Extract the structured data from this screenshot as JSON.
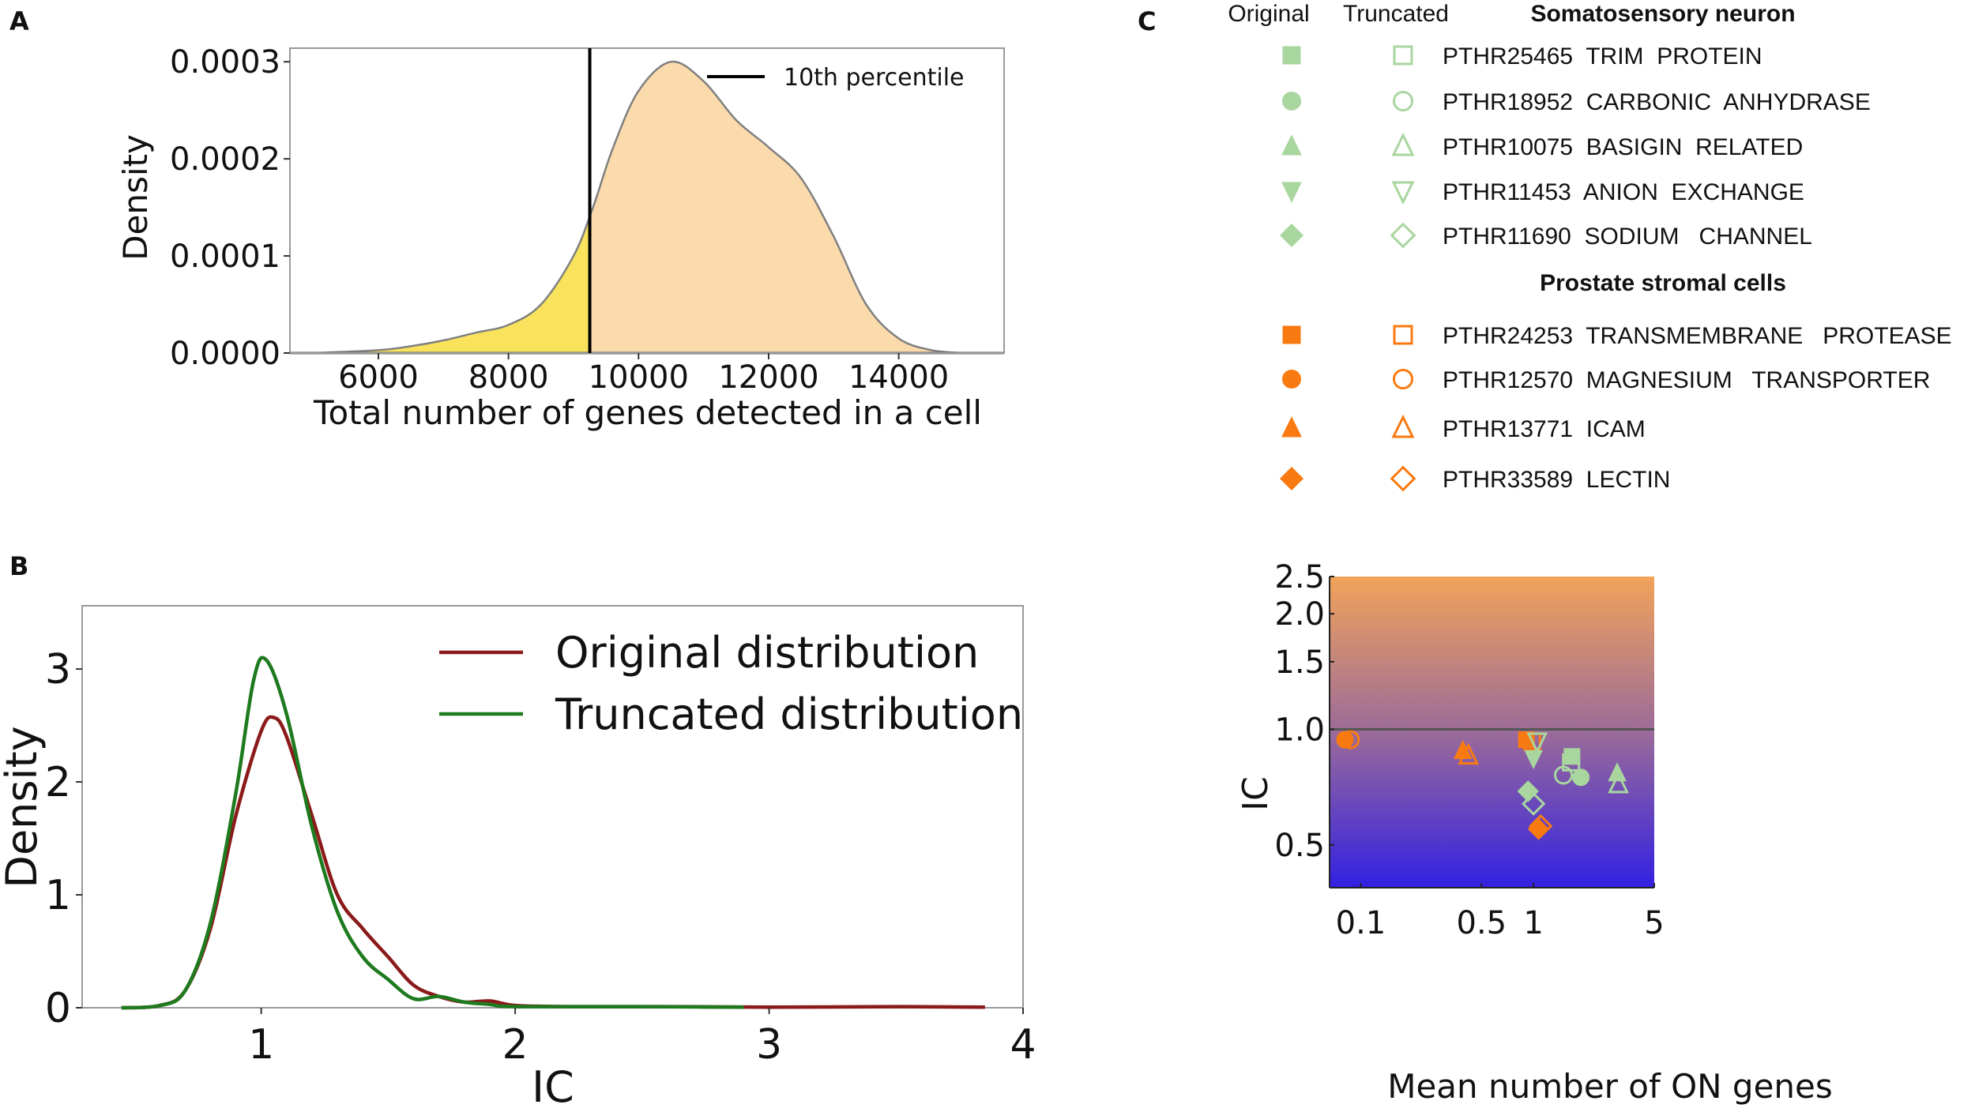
{
  "panel_labels": {
    "a": "A",
    "b": "B",
    "c": "C"
  },
  "chart_data": [
    {
      "id": "A",
      "type": "area",
      "xlabel": "Total number of genes detected in a cell",
      "ylabel": "Density",
      "xlim": [
        4640,
        15620
      ],
      "ylim": [
        0,
        0.000314
      ],
      "x_ticks": [
        6000,
        8000,
        10000,
        12000,
        14000
      ],
      "x_tick_labels": [
        "6000",
        "8000",
        "10000",
        "12000",
        "14000"
      ],
      "y_ticks": [
        0,
        0.0001,
        0.0002,
        0.0003
      ],
      "y_tick_labels": [
        "0.0000",
        "0.0001",
        "0.0002",
        "0.0003"
      ],
      "legend": {
        "label": "10th percentile",
        "placement": "top-right"
      },
      "percentile_10": 9250,
      "colors": {
        "below": "#f9e35c",
        "above": "#fbdbab",
        "outline": "#808080",
        "line": "#000000"
      },
      "x": [
        5000,
        6000,
        6500,
        7000,
        7500,
        8000,
        8500,
        9000,
        9300,
        9600,
        10000,
        10500,
        11000,
        11500,
        12000,
        12500,
        13000,
        13500,
        14000,
        14500,
        15000
      ],
      "y": [
        0,
        3e-06,
        7e-06,
        1.3e-05,
        2.1e-05,
        2.9e-05,
        5e-05,
        0.0001,
        0.00015,
        0.00021,
        0.00027,
        0.0003,
        0.00028,
        0.00024,
        0.000212,
        0.00018,
        0.00012,
        5e-05,
        1.5e-05,
        3e-06,
        0
      ]
    },
    {
      "id": "B",
      "type": "line",
      "xlabel": "IC",
      "ylabel": "Density",
      "xlim": [
        0.295,
        4.0
      ],
      "ylim": [
        0,
        3.56
      ],
      "x_ticks": [
        1,
        2,
        3,
        4
      ],
      "x_tick_labels": [
        "1",
        "2",
        "3",
        "4"
      ],
      "y_ticks": [
        0,
        1,
        2,
        3
      ],
      "y_tick_labels": [
        "0",
        "1",
        "2",
        "3"
      ],
      "legend_placement": "top-right",
      "series": [
        {
          "name": "Original distribution",
          "color": "#8b1a1a",
          "x": [
            0.45,
            0.6,
            0.7,
            0.8,
            0.9,
            1.0,
            1.05,
            1.1,
            1.2,
            1.3,
            1.4,
            1.5,
            1.6,
            1.7,
            1.8,
            1.9,
            2.0,
            2.2,
            2.6,
            3.0,
            3.5,
            3.85
          ],
          "y": [
            0,
            0.02,
            0.15,
            0.7,
            1.7,
            2.45,
            2.57,
            2.4,
            1.7,
            1.0,
            0.7,
            0.45,
            0.2,
            0.1,
            0.05,
            0.06,
            0.02,
            0.01,
            0.01,
            0.005,
            0.01,
            0.005
          ]
        },
        {
          "name": "Truncated distribution",
          "color": "#1e7a1e",
          "x": [
            0.45,
            0.6,
            0.7,
            0.8,
            0.9,
            0.97,
            1.02,
            1.1,
            1.2,
            1.3,
            1.4,
            1.5,
            1.6,
            1.7,
            1.8,
            1.9,
            2.0,
            2.5,
            2.9
          ],
          "y": [
            0,
            0.02,
            0.15,
            0.75,
            1.9,
            2.9,
            3.08,
            2.6,
            1.6,
            0.85,
            0.45,
            0.25,
            0.08,
            0.1,
            0.05,
            0.03,
            0.01,
            0.01,
            0.005
          ]
        }
      ]
    },
    {
      "id": "C",
      "type": "scatter",
      "xlabel": "Mean number of ON genes",
      "ylabel": "IC",
      "xscale": "log",
      "yscale": "log",
      "xlim": [
        0.066,
        5
      ],
      "ylim": [
        0.387,
        2.5
      ],
      "x_ticks": [
        0.1,
        0.5,
        1,
        5
      ],
      "x_tick_labels": [
        "0.1",
        "0.5",
        "1",
        "5"
      ],
      "y_ticks": [
        0.5,
        1.0,
        1.5,
        2.0,
        2.5
      ],
      "y_tick_labels": [
        "0.5",
        "1.0",
        "1.5",
        "2.0",
        "2.5"
      ],
      "reference_line": 1.0,
      "background_gradient": [
        "#f2a35a",
        "#9b6b99",
        "#3220e2"
      ],
      "legend": {
        "col_original": "Original",
        "col_truncated": "Truncated",
        "groups": [
          {
            "title": "Somatosensory neuron",
            "color": "#a9d69f",
            "items": [
              {
                "shape": "square",
                "label": "PTHR25465  TRIM  PROTEIN"
              },
              {
                "shape": "circle",
                "label": "PTHR18952  CARBONIC  ANHYDRASE"
              },
              {
                "shape": "triangle",
                "label": "PTHR10075  BASIGIN  RELATED"
              },
              {
                "shape": "down-triangle",
                "label": "PTHR11453  ANION  EXCHANGE"
              },
              {
                "shape": "diamond",
                "label": "PTHR11690  SODIUM   CHANNEL"
              }
            ]
          },
          {
            "title": "Prostate stromal cells",
            "color": "#fa7a12",
            "items": [
              {
                "shape": "square",
                "label": "PTHR24253  TRANSMEMBRANE   PROTEASE"
              },
              {
                "shape": "circle",
                "label": "PTHR12570  MAGNESIUM   TRANSPORTER"
              },
              {
                "shape": "triangle",
                "label": "PTHR13771  ICAM"
              },
              {
                "shape": "diamond",
                "label": "PTHR33589  LECTIN"
              }
            ]
          }
        ]
      },
      "points": [
        {
          "group": 1,
          "shape": "circle",
          "filled": true,
          "x": 0.081,
          "y": 0.94
        },
        {
          "group": 1,
          "shape": "circle",
          "filled": false,
          "x": 0.087,
          "y": 0.94
        },
        {
          "group": 1,
          "shape": "triangle",
          "filled": true,
          "x": 0.39,
          "y": 0.88
        },
        {
          "group": 1,
          "shape": "triangle",
          "filled": false,
          "x": 0.42,
          "y": 0.855
        },
        {
          "group": 1,
          "shape": "square",
          "filled": true,
          "x": 0.91,
          "y": 0.94
        },
        {
          "group": 1,
          "shape": "square",
          "filled": false,
          "x": 0.98,
          "y": 0.93
        },
        {
          "group": 0,
          "shape": "down-triangle",
          "filled": false,
          "x": 1.05,
          "y": 0.93
        },
        {
          "group": 0,
          "shape": "down-triangle",
          "filled": true,
          "x": 1.0,
          "y": 0.84
        },
        {
          "group": 0,
          "shape": "square",
          "filled": true,
          "x": 1.67,
          "y": 0.85
        },
        {
          "group": 0,
          "shape": "square",
          "filled": false,
          "x": 1.65,
          "y": 0.82
        },
        {
          "group": 0,
          "shape": "circle",
          "filled": false,
          "x": 1.49,
          "y": 0.76
        },
        {
          "group": 0,
          "shape": "circle",
          "filled": true,
          "x": 1.88,
          "y": 0.75
        },
        {
          "group": 0,
          "shape": "triangle",
          "filled": true,
          "x": 3.05,
          "y": 0.77
        },
        {
          "group": 0,
          "shape": "triangle",
          "filled": false,
          "x": 3.1,
          "y": 0.72
        },
        {
          "group": 0,
          "shape": "diamond",
          "filled": true,
          "x": 0.93,
          "y": 0.69
        },
        {
          "group": 0,
          "shape": "diamond",
          "filled": false,
          "x": 1.0,
          "y": 0.64
        },
        {
          "group": 1,
          "shape": "diamond",
          "filled": true,
          "x": 1.07,
          "y": 0.55
        },
        {
          "group": 1,
          "shape": "diamond",
          "filled": false,
          "x": 1.1,
          "y": 0.56
        }
      ]
    }
  ]
}
